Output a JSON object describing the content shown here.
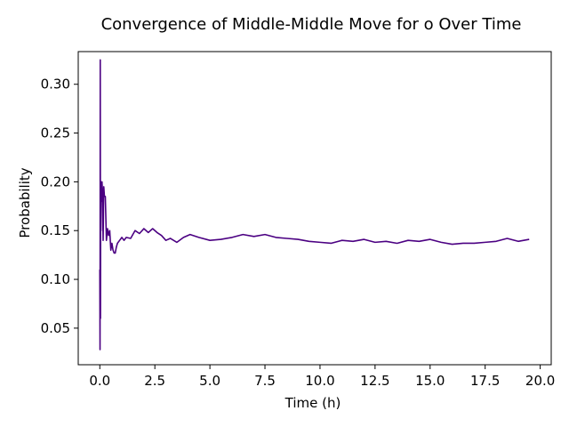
{
  "chart_data": {
    "type": "line",
    "title": "Convergence of Middle-Middle Move for o Over Time",
    "xlabel": "Time (h)",
    "ylabel": "Probability",
    "xlim": [
      -0.98,
      20.5
    ],
    "ylim": [
      0.0125,
      0.3335
    ],
    "xticks": [
      0.0,
      2.5,
      5.0,
      7.5,
      10.0,
      12.5,
      15.0,
      17.5,
      20.0
    ],
    "xtick_labels": [
      "0.0",
      "2.5",
      "5.0",
      "7.5",
      "10.0",
      "12.5",
      "15.0",
      "17.5",
      "20.0"
    ],
    "yticks": [
      0.05,
      0.1,
      0.15,
      0.2,
      0.25,
      0.3
    ],
    "ytick_labels": [
      "0.05",
      "0.10",
      "0.15",
      "0.20",
      "0.25",
      "0.30"
    ],
    "grid": false,
    "line_color": "#4b0082",
    "series": [
      {
        "x": [
          0.0,
          0.01,
          0.02,
          0.03,
          0.04,
          0.05,
          0.06,
          0.08,
          0.1,
          0.12,
          0.15,
          0.18,
          0.21,
          0.25,
          0.3,
          0.35,
          0.4,
          0.45,
          0.5,
          0.55,
          0.6,
          0.65,
          0.7,
          0.75,
          0.8,
          0.9,
          1.0,
          1.1,
          1.2,
          1.4,
          1.6,
          1.8,
          2.0,
          2.2,
          2.4,
          2.6,
          2.8,
          3.0,
          3.2,
          3.5,
          3.8,
          4.1,
          4.5,
          5.0,
          5.5,
          6.0,
          6.5,
          7.0,
          7.5,
          8.0,
          8.5,
          9.0,
          9.5,
          10.0,
          10.5,
          11.0,
          11.5,
          12.0,
          12.5,
          13.0,
          13.5,
          14.0,
          14.5,
          15.0,
          15.5,
          16.0,
          16.5,
          17.0,
          17.5,
          18.0,
          18.5,
          19.0,
          19.5
        ],
        "y": [
          0.11,
          0.028,
          0.325,
          0.06,
          0.2,
          0.15,
          0.2,
          0.18,
          0.2,
          0.19,
          0.14,
          0.195,
          0.185,
          0.185,
          0.14,
          0.152,
          0.145,
          0.15,
          0.13,
          0.137,
          0.13,
          0.127,
          0.127,
          0.133,
          0.137,
          0.14,
          0.143,
          0.14,
          0.143,
          0.142,
          0.15,
          0.147,
          0.152,
          0.148,
          0.152,
          0.148,
          0.145,
          0.14,
          0.142,
          0.138,
          0.143,
          0.146,
          0.143,
          0.14,
          0.141,
          0.143,
          0.146,
          0.144,
          0.146,
          0.143,
          0.142,
          0.141,
          0.139,
          0.138,
          0.137,
          0.14,
          0.139,
          0.141,
          0.138,
          0.139,
          0.137,
          0.14,
          0.139,
          0.141,
          0.138,
          0.136,
          0.137,
          0.137,
          0.138,
          0.139,
          0.142,
          0.139,
          0.141
        ]
      }
    ]
  }
}
